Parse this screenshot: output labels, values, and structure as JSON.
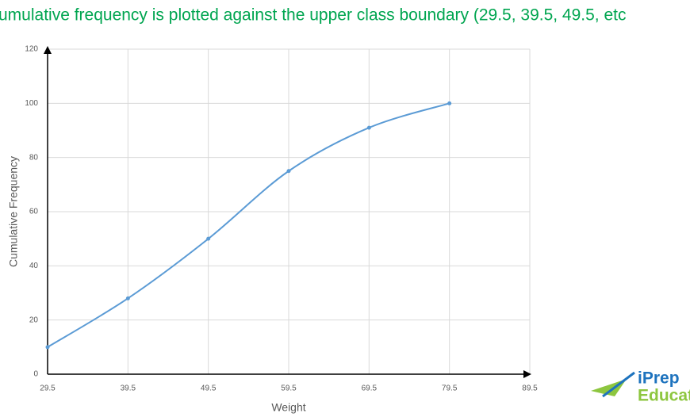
{
  "chart_data": {
    "type": "line",
    "title": "umulative frequency is plotted against the upper class boundary (29.5, 39.5, 49.5, etc",
    "x_label": "Weight",
    "y_label": "Cumulative Frequency",
    "smooth": true,
    "grid": true,
    "axis_arrows": true,
    "series": [
      {
        "name": "Cumulative Frequency",
        "color": "#5b9bd5",
        "x": [
          29.5,
          39.5,
          49.5,
          59.5,
          69.5,
          79.5
        ],
        "values": [
          10,
          28,
          50,
          75,
          91,
          100
        ]
      }
    ],
    "xlim": [
      29.5,
      89.5
    ],
    "xticks": [
      29.5,
      39.5,
      49.5,
      59.5,
      69.5,
      79.5,
      89.5
    ],
    "ylim": [
      0,
      120
    ],
    "yticks": [
      0,
      20,
      40,
      60,
      80,
      100,
      120
    ]
  },
  "logo": {
    "line1": "iPrep",
    "line2": "Educat"
  }
}
